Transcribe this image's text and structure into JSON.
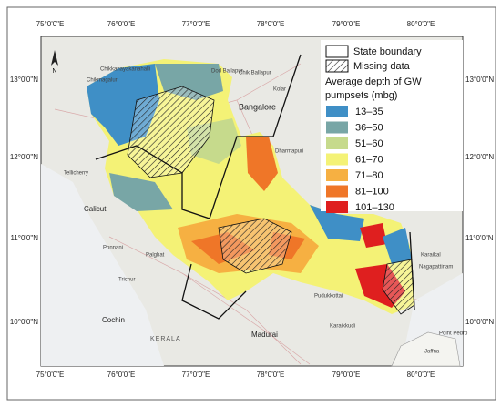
{
  "graticule": {
    "longitudes": [
      "75°0'0\"E",
      "76°0'0\"E",
      "77°0'0\"E",
      "78°0'0\"E",
      "79°0'0\"E",
      "80°0'0\"E"
    ],
    "latitudes": [
      "13°0'0\"N",
      "12°0'0\"N",
      "11°0'0\"N",
      "10°0'0\"N"
    ]
  },
  "legend": {
    "state_boundary": "State boundary",
    "missing_data": "Missing data",
    "title_lines": [
      "Average depth of GW",
      "pumpsets (mbg)"
    ],
    "classes": [
      {
        "label": "13–35",
        "color": "#3f8fc6"
      },
      {
        "label": "36–50",
        "color": "#78a6a6"
      },
      {
        "label": "51–60",
        "color": "#c6da8c"
      },
      {
        "label": "61–70",
        "color": "#f4f276"
      },
      {
        "label": "71–80",
        "color": "#f6b042"
      },
      {
        "label": "81–100",
        "color": "#ef7628"
      },
      {
        "label": "101–130",
        "color": "#df1f1f"
      }
    ]
  },
  "places": [
    "Chikmagalur",
    "Chikkanayakanahalli",
    "Dod Ballapur",
    "Chik Ballapur",
    "Kolar",
    "Bangalore",
    "Dharmapuri",
    "Tellicherry",
    "Calicut",
    "Ponnani",
    "Palghat",
    "Trichur",
    "Cochin",
    "KERALA",
    "Madurai",
    "Pudukkottai",
    "Karaikkudi",
    "Karaikal",
    "Nagapattinam",
    "Jaffna",
    "Point Pedro"
  ]
}
